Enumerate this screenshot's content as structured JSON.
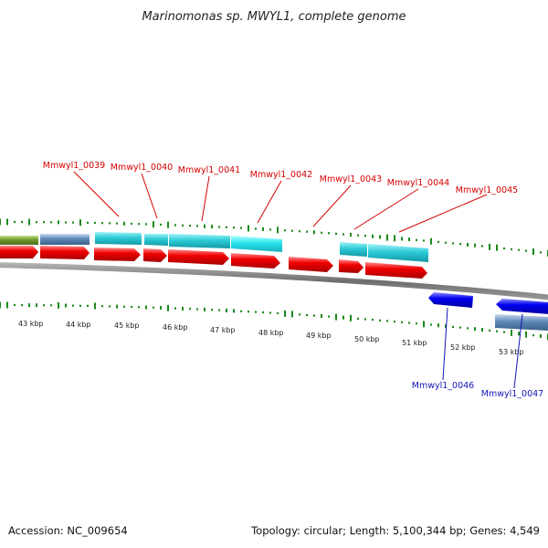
{
  "title": "Marinomonas sp. MWYL1, complete genome",
  "accession": "Accession: NC_009654",
  "topology": "Topology: circular; Length: 5,100,344 bp; Genes: 4,549",
  "kbp_labels": [
    "43 kbp",
    "44 kbp",
    "45 kbp",
    "46 kbp",
    "47 kbp",
    "48 kbp",
    "49 kbp",
    "50 kbp",
    "51 kbp",
    "52 kbp",
    "53 kbp"
  ],
  "genes_forward": [
    {
      "name": "Mmwyl1_0039"
    },
    {
      "name": "Mmwyl1_0040"
    },
    {
      "name": "Mmwyl1_0041"
    },
    {
      "name": "Mmwyl1_0042"
    },
    {
      "name": "Mmwyl1_0043"
    },
    {
      "name": "Mmwyl1_0044"
    },
    {
      "name": "Mmwyl1_0045"
    }
  ],
  "genes_reverse": [
    {
      "name": "Mmwyl1_0046"
    },
    {
      "name": "Mmwyl1_0047"
    }
  ],
  "colors": {
    "forward_gene": "#e00000",
    "reverse_gene": "#0000e0",
    "forward_label": "#d40000",
    "reverse_label": "#1414b4",
    "cds_cyan": "#2cc6d2",
    "cds_steel": "#5f86b3",
    "cds_olive": "#6f9a2a",
    "gc_ticks": "#1a8a1a",
    "backbone": "#8a8a8a"
  }
}
